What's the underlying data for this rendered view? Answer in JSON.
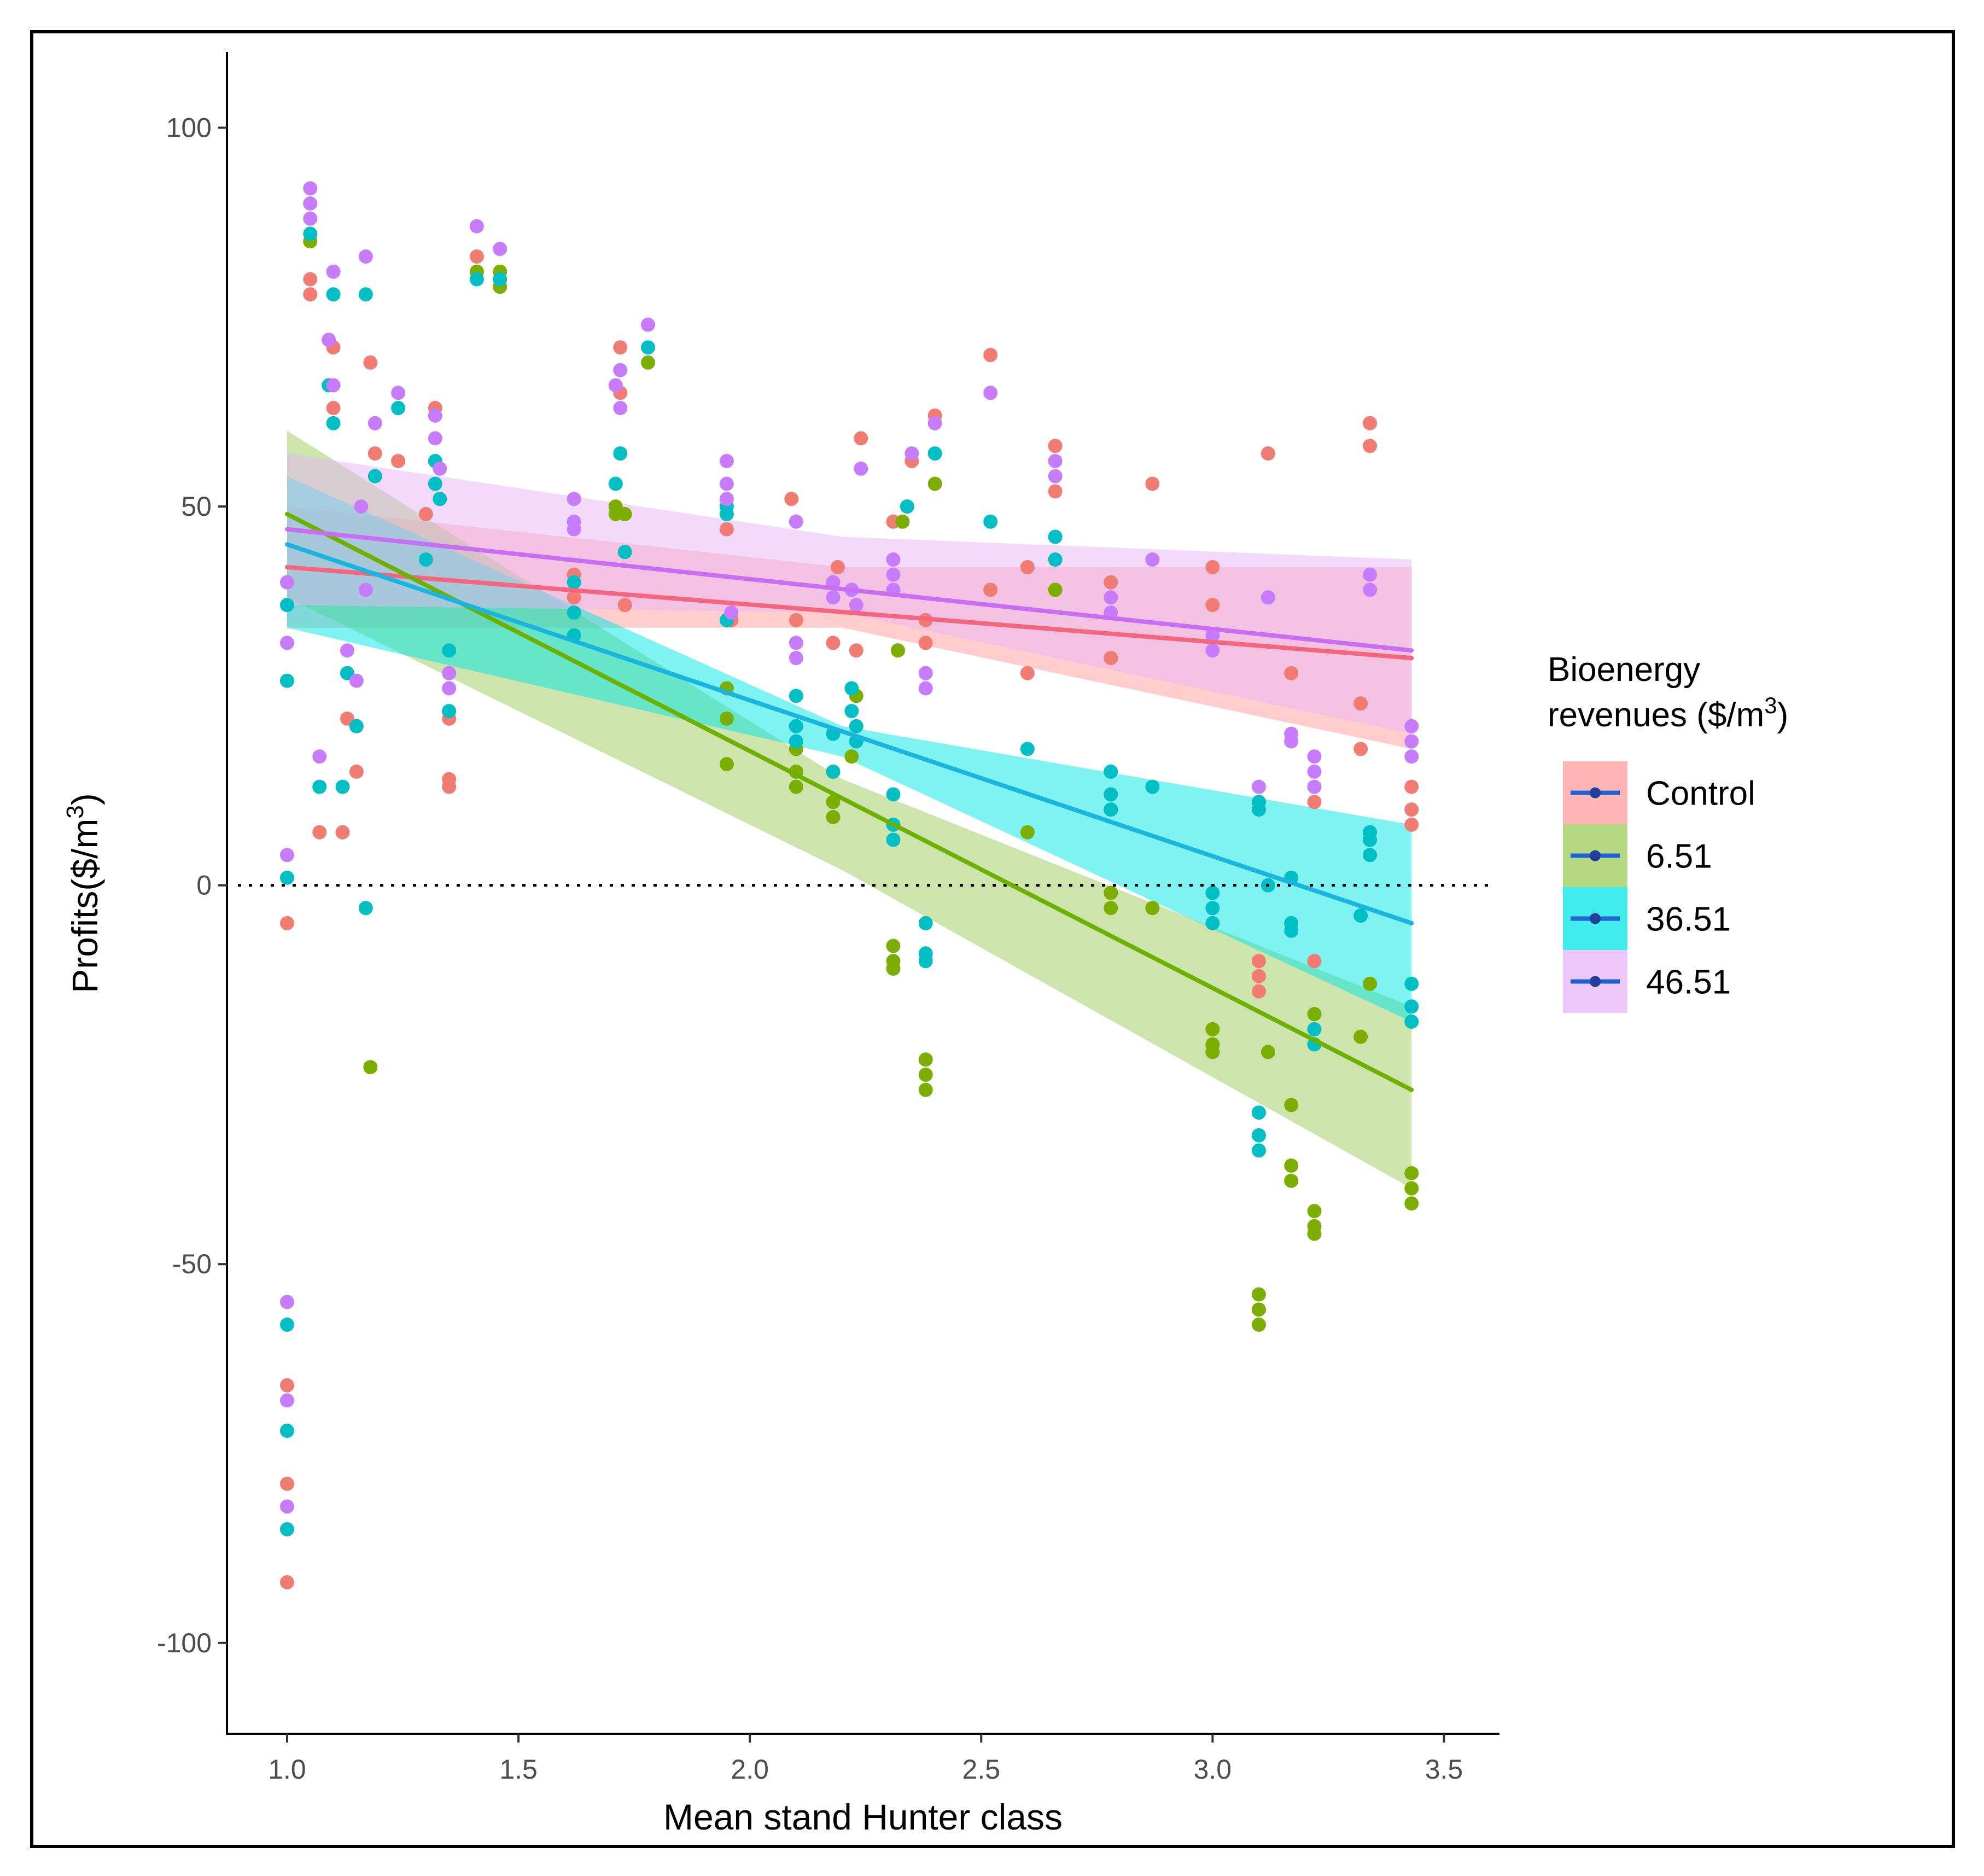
{
  "chart_data": {
    "type": "scatter",
    "xlabel": "Mean stand Hunter class",
    "ylabel": "Profits($/m",
    "ylabel_superscript": "3",
    "ylabel_suffix": ")",
    "xlim": [
      0.87,
      3.62
    ],
    "ylim": [
      -112,
      110
    ],
    "x_ticks": [
      1.0,
      1.5,
      2.0,
      2.5,
      3.0,
      3.5
    ],
    "x_tick_labels": [
      "1.0",
      "1.5",
      "2.0",
      "2.5",
      "3.0",
      "3.5"
    ],
    "y_ticks": [
      -100,
      -50,
      0,
      50,
      100
    ],
    "y_tick_labels": [
      "-100",
      "-50",
      "0",
      "50",
      "100"
    ],
    "reference_line": 0,
    "grid": false,
    "legend": {
      "title_line1": "Bioenergy",
      "title_line2": "revenues ($/m",
      "title_superscript": "3",
      "title_suffix": ")",
      "placement": "right"
    },
    "series": [
      {
        "name": "Control",
        "point_color": "#f07c74",
        "line_color": "#f4667e",
        "band_color": "#ff9c9c",
        "line": [
          [
            1.0,
            42
          ],
          [
            3.43,
            30
          ]
        ],
        "band_upper": [
          [
            1.0,
            50
          ],
          [
            2.2,
            42
          ],
          [
            3.43,
            42
          ]
        ],
        "band_lower": [
          [
            1.0,
            34
          ],
          [
            2.2,
            34
          ],
          [
            3.43,
            18
          ]
        ],
        "points": [
          [
            1.0,
            -5
          ],
          [
            1.0,
            -66
          ],
          [
            1.0,
            -79
          ],
          [
            1.0,
            -92
          ],
          [
            1.05,
            78
          ],
          [
            1.05,
            80
          ],
          [
            1.07,
            7
          ],
          [
            1.1,
            63
          ],
          [
            1.1,
            71
          ],
          [
            1.12,
            7
          ],
          [
            1.13,
            22
          ],
          [
            1.15,
            15
          ],
          [
            1.18,
            69
          ],
          [
            1.19,
            57
          ],
          [
            1.24,
            56
          ],
          [
            1.3,
            49
          ],
          [
            1.32,
            63
          ],
          [
            1.35,
            22
          ],
          [
            1.35,
            13
          ],
          [
            1.35,
            14
          ],
          [
            1.41,
            83
          ],
          [
            1.62,
            38
          ],
          [
            1.62,
            41
          ],
          [
            1.72,
            65
          ],
          [
            1.72,
            71
          ],
          [
            1.73,
            37
          ],
          [
            1.95,
            47
          ],
          [
            1.96,
            35
          ],
          [
            2.09,
            51
          ],
          [
            2.1,
            35
          ],
          [
            2.18,
            32
          ],
          [
            2.19,
            42
          ],
          [
            2.23,
            31
          ],
          [
            2.24,
            59
          ],
          [
            2.31,
            48
          ],
          [
            2.32,
            31
          ],
          [
            2.35,
            56
          ],
          [
            2.38,
            32
          ],
          [
            2.38,
            35
          ],
          [
            2.4,
            62
          ],
          [
            2.52,
            70
          ],
          [
            2.52,
            39
          ],
          [
            2.6,
            42
          ],
          [
            2.6,
            28
          ],
          [
            2.66,
            58
          ],
          [
            2.66,
            52
          ],
          [
            2.78,
            30
          ],
          [
            2.78,
            40
          ],
          [
            2.87,
            53
          ],
          [
            3.0,
            42
          ],
          [
            3.0,
            37
          ],
          [
            3.1,
            -10
          ],
          [
            3.1,
            -12
          ],
          [
            3.1,
            -14
          ],
          [
            3.12,
            57
          ],
          [
            3.17,
            28
          ],
          [
            3.22,
            11
          ],
          [
            3.22,
            -10
          ],
          [
            3.32,
            24
          ],
          [
            3.32,
            18
          ],
          [
            3.34,
            61
          ],
          [
            3.34,
            58
          ],
          [
            3.43,
            13
          ],
          [
            3.43,
            10
          ],
          [
            3.43,
            8
          ]
        ]
      },
      {
        "name": "6.51",
        "point_color": "#7cae00",
        "line_color": "#6db000",
        "band_color": "#9ccb5a",
        "line": [
          [
            1.0,
            49
          ],
          [
            3.43,
            -27
          ]
        ],
        "band_upper": [
          [
            1.0,
            60
          ],
          [
            2.2,
            14
          ],
          [
            3.43,
            -16
          ]
        ],
        "band_lower": [
          [
            1.0,
            38
          ],
          [
            2.2,
            2
          ],
          [
            3.43,
            -40
          ]
        ],
        "points": [
          [
            1.05,
            85
          ],
          [
            1.18,
            -24
          ],
          [
            1.41,
            81
          ],
          [
            1.46,
            81
          ],
          [
            1.46,
            79
          ],
          [
            1.71,
            50
          ],
          [
            1.71,
            49
          ],
          [
            1.73,
            49
          ],
          [
            1.78,
            69
          ],
          [
            1.95,
            26
          ],
          [
            1.95,
            22
          ],
          [
            1.95,
            16
          ],
          [
            2.1,
            18
          ],
          [
            2.1,
            15
          ],
          [
            2.1,
            13
          ],
          [
            2.18,
            11
          ],
          [
            2.18,
            9
          ],
          [
            2.18,
            15
          ],
          [
            2.22,
            17
          ],
          [
            2.23,
            25
          ],
          [
            2.31,
            -8
          ],
          [
            2.31,
            -10
          ],
          [
            2.31,
            -11
          ],
          [
            2.32,
            31
          ],
          [
            2.33,
            48
          ],
          [
            2.38,
            -23
          ],
          [
            2.38,
            -25
          ],
          [
            2.38,
            -27
          ],
          [
            2.4,
            53
          ],
          [
            2.6,
            7
          ],
          [
            2.66,
            39
          ],
          [
            2.78,
            -1
          ],
          [
            2.78,
            -3
          ],
          [
            2.87,
            -3
          ],
          [
            3.0,
            -19
          ],
          [
            3.0,
            -21
          ],
          [
            3.0,
            -22
          ],
          [
            3.1,
            -54
          ],
          [
            3.1,
            -56
          ],
          [
            3.1,
            -58
          ],
          [
            3.12,
            -22
          ],
          [
            3.17,
            -29
          ],
          [
            3.17,
            -37
          ],
          [
            3.17,
            -39
          ],
          [
            3.22,
            -43
          ],
          [
            3.22,
            -45
          ],
          [
            3.22,
            -46
          ],
          [
            3.22,
            -17
          ],
          [
            3.32,
            -20
          ],
          [
            3.34,
            -13
          ],
          [
            3.43,
            -38
          ],
          [
            3.43,
            -40
          ],
          [
            3.43,
            -42
          ]
        ]
      },
      {
        "name": "36.51",
        "point_color": "#00bfc4",
        "line_color": "#19b5de",
        "band_color": "#00e5e5",
        "line": [
          [
            1.0,
            45
          ],
          [
            3.43,
            -5
          ]
        ],
        "band_upper": [
          [
            1.0,
            54
          ],
          [
            2.2,
            21
          ],
          [
            3.43,
            8
          ]
        ],
        "band_lower": [
          [
            1.0,
            34
          ],
          [
            2.2,
            17
          ],
          [
            3.43,
            -18
          ]
        ],
        "points": [
          [
            1.0,
            37
          ],
          [
            1.0,
            27
          ],
          [
            1.0,
            1
          ],
          [
            1.0,
            -58
          ],
          [
            1.0,
            -72
          ],
          [
            1.0,
            -85
          ],
          [
            1.05,
            86
          ],
          [
            1.07,
            13
          ],
          [
            1.09,
            66
          ],
          [
            1.1,
            78
          ],
          [
            1.1,
            61
          ],
          [
            1.12,
            13
          ],
          [
            1.13,
            28
          ],
          [
            1.15,
            21
          ],
          [
            1.17,
            -3
          ],
          [
            1.17,
            78
          ],
          [
            1.19,
            54
          ],
          [
            1.24,
            63
          ],
          [
            1.3,
            43
          ],
          [
            1.32,
            56
          ],
          [
            1.32,
            53
          ],
          [
            1.33,
            51
          ],
          [
            1.35,
            31
          ],
          [
            1.35,
            23
          ],
          [
            1.41,
            80
          ],
          [
            1.46,
            80
          ],
          [
            1.62,
            40
          ],
          [
            1.62,
            36
          ],
          [
            1.62,
            33
          ],
          [
            1.71,
            53
          ],
          [
            1.72,
            57
          ],
          [
            1.73,
            44
          ],
          [
            1.78,
            71
          ],
          [
            1.95,
            50
          ],
          [
            1.95,
            49
          ],
          [
            1.95,
            35
          ],
          [
            2.1,
            25
          ],
          [
            2.1,
            21
          ],
          [
            2.1,
            19
          ],
          [
            2.18,
            20
          ],
          [
            2.18,
            15
          ],
          [
            2.22,
            26
          ],
          [
            2.22,
            23
          ],
          [
            2.23,
            21
          ],
          [
            2.23,
            19
          ],
          [
            2.31,
            12
          ],
          [
            2.31,
            8
          ],
          [
            2.31,
            6
          ],
          [
            2.34,
            50
          ],
          [
            2.38,
            -5
          ],
          [
            2.38,
            -9
          ],
          [
            2.38,
            -10
          ],
          [
            2.4,
            57
          ],
          [
            2.52,
            48
          ],
          [
            2.6,
            18
          ],
          [
            2.66,
            46
          ],
          [
            2.66,
            43
          ],
          [
            2.78,
            15
          ],
          [
            2.78,
            12
          ],
          [
            2.78,
            10
          ],
          [
            2.87,
            13
          ],
          [
            3.0,
            -1
          ],
          [
            3.0,
            -3
          ],
          [
            3.0,
            -5
          ],
          [
            3.1,
            -30
          ],
          [
            3.1,
            -33
          ],
          [
            3.1,
            -35
          ],
          [
            3.1,
            10
          ],
          [
            3.1,
            11
          ],
          [
            3.12,
            0
          ],
          [
            3.17,
            -5
          ],
          [
            3.17,
            -6
          ],
          [
            3.17,
            1
          ],
          [
            3.22,
            -21
          ],
          [
            3.22,
            -19
          ],
          [
            3.32,
            -4
          ],
          [
            3.34,
            4
          ],
          [
            3.34,
            6
          ],
          [
            3.34,
            7
          ],
          [
            3.43,
            -13
          ],
          [
            3.43,
            -16
          ],
          [
            3.43,
            -18
          ]
        ]
      },
      {
        "name": "46.51",
        "point_color": "#c77cff",
        "line_color": "#c86ef2",
        "band_color": "#e8b6f8",
        "line": [
          [
            1.0,
            47
          ],
          [
            3.43,
            31
          ]
        ],
        "band_upper": [
          [
            1.0,
            57
          ],
          [
            2.2,
            46
          ],
          [
            3.43,
            43
          ]
        ],
        "band_lower": [
          [
            1.0,
            37
          ],
          [
            2.2,
            36
          ],
          [
            3.43,
            20
          ]
        ],
        "points": [
          [
            1.0,
            40
          ],
          [
            1.0,
            32
          ],
          [
            1.0,
            4
          ],
          [
            1.0,
            -55
          ],
          [
            1.0,
            -68
          ],
          [
            1.0,
            -82
          ],
          [
            1.05,
            92
          ],
          [
            1.05,
            90
          ],
          [
            1.05,
            88
          ],
          [
            1.07,
            17
          ],
          [
            1.09,
            72
          ],
          [
            1.1,
            81
          ],
          [
            1.1,
            66
          ],
          [
            1.13,
            31
          ],
          [
            1.15,
            27
          ],
          [
            1.16,
            50
          ],
          [
            1.17,
            83
          ],
          [
            1.17,
            39
          ],
          [
            1.19,
            61
          ],
          [
            1.24,
            65
          ],
          [
            1.32,
            62
          ],
          [
            1.32,
            59
          ],
          [
            1.33,
            55
          ],
          [
            1.35,
            28
          ],
          [
            1.35,
            26
          ],
          [
            1.41,
            87
          ],
          [
            1.46,
            84
          ],
          [
            1.62,
            51
          ],
          [
            1.62,
            48
          ],
          [
            1.62,
            47
          ],
          [
            1.71,
            66
          ],
          [
            1.72,
            68
          ],
          [
            1.72,
            63
          ],
          [
            1.78,
            74
          ],
          [
            1.95,
            56
          ],
          [
            1.95,
            53
          ],
          [
            1.95,
            51
          ],
          [
            1.96,
            36
          ],
          [
            2.1,
            48
          ],
          [
            2.1,
            32
          ],
          [
            2.1,
            30
          ],
          [
            2.18,
            40
          ],
          [
            2.18,
            38
          ],
          [
            2.22,
            39
          ],
          [
            2.23,
            37
          ],
          [
            2.24,
            55
          ],
          [
            2.31,
            43
          ],
          [
            2.31,
            41
          ],
          [
            2.31,
            39
          ],
          [
            2.35,
            57
          ],
          [
            2.38,
            28
          ],
          [
            2.38,
            26
          ],
          [
            2.4,
            61
          ],
          [
            2.52,
            65
          ],
          [
            2.66,
            56
          ],
          [
            2.66,
            54
          ],
          [
            2.78,
            38
          ],
          [
            2.78,
            36
          ],
          [
            2.87,
            43
          ],
          [
            3.0,
            33
          ],
          [
            3.0,
            31
          ],
          [
            3.1,
            13
          ],
          [
            3.12,
            38
          ],
          [
            3.17,
            19
          ],
          [
            3.17,
            20
          ],
          [
            3.22,
            17
          ],
          [
            3.22,
            15
          ],
          [
            3.22,
            13
          ],
          [
            3.34,
            41
          ],
          [
            3.34,
            39
          ],
          [
            3.43,
            21
          ],
          [
            3.43,
            19
          ],
          [
            3.43,
            17
          ]
        ]
      }
    ]
  }
}
